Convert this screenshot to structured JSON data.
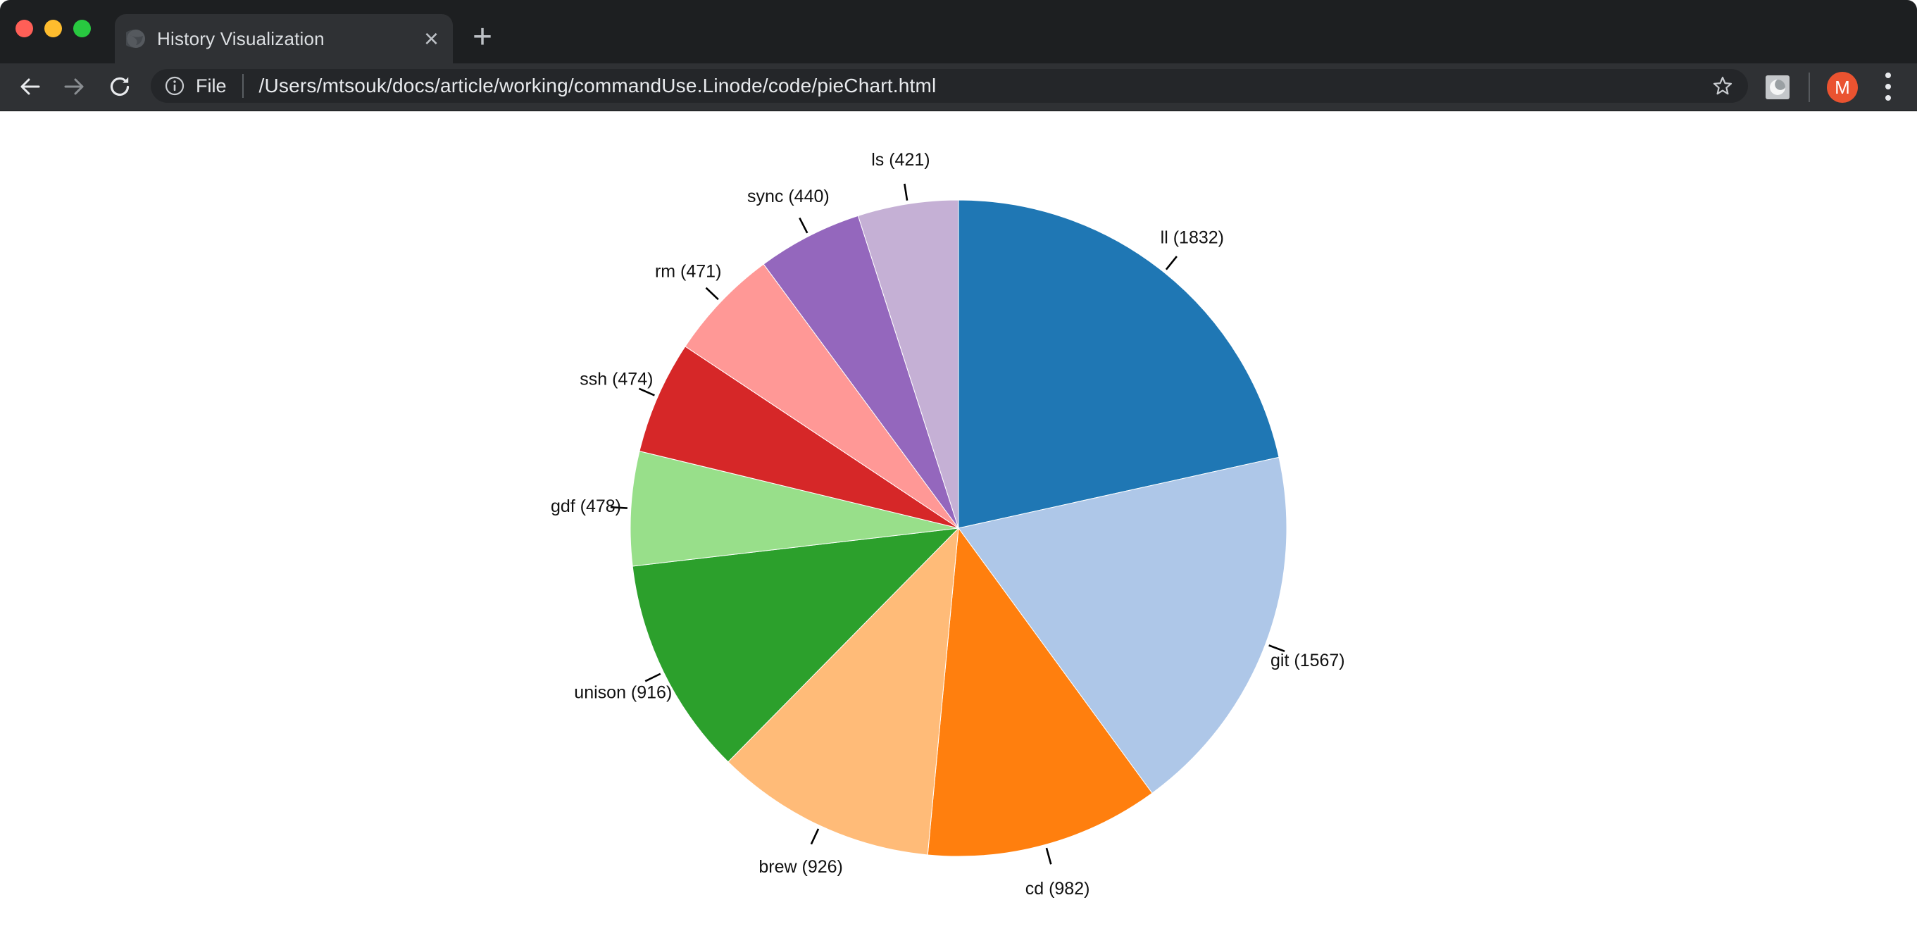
{
  "browser": {
    "window_controls": {
      "close_color": "#ff5f57",
      "minimize_color": "#febc2e",
      "zoom_color": "#28c840"
    },
    "tab": {
      "title": "History Visualization",
      "favicon": "globe-icon",
      "close_glyph": "×"
    },
    "new_tab_glyph": "+",
    "toolbar": {
      "back_icon": "back-arrow",
      "forward_icon": "forward-arrow",
      "reload_icon": "reload-arrow",
      "file_scheme_label": "File",
      "url": "/Users/mtsouk/docs/article/working/commandUse.Linode/code/pieChart.html",
      "bookmark_icon": "star",
      "extension_icon": "swirl-logo",
      "avatar_initial": "M",
      "avatar_color": "#ea5330",
      "menu_icon": "kebab-dots"
    }
  },
  "chart_data": {
    "type": "pie",
    "title": "",
    "categories": [
      "ll",
      "git",
      "cd",
      "brew",
      "unison",
      "gdf",
      "ssh",
      "rm",
      "sync",
      "ls"
    ],
    "values": [
      1832,
      1567,
      982,
      926,
      916,
      478,
      474,
      471,
      440,
      421
    ],
    "colors": [
      "#1f77b4",
      "#aec7e8",
      "#ff7f0e",
      "#ffbb78",
      "#2ca02c",
      "#98df8a",
      "#d62728",
      "#ff9896",
      "#9467bd",
      "#c5b0d5"
    ],
    "label_template": "{name} ({value})",
    "label_color": "#111111",
    "tick_color": "#000000",
    "slice_stroke": "#ffffff",
    "start_angle_deg": 0,
    "direction": "clockwise",
    "legend": false,
    "background": "#ffffff"
  }
}
